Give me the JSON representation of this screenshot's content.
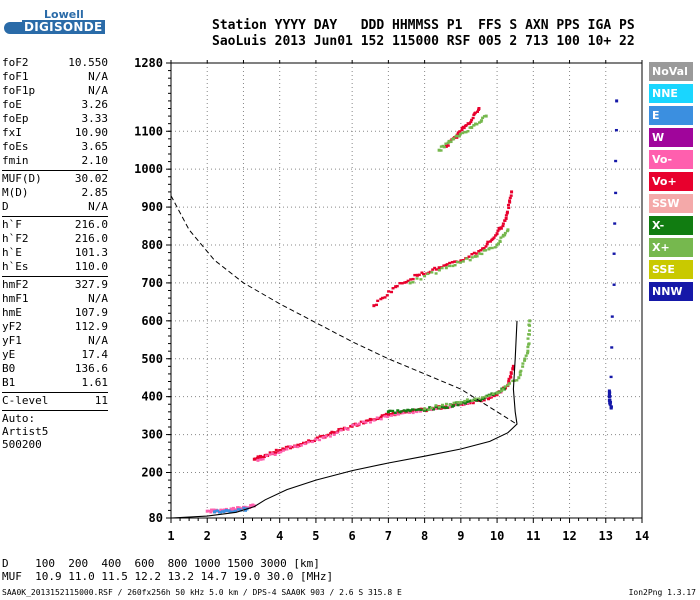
{
  "logo": {
    "line1": "Lowell",
    "line2": "DIGISONDE"
  },
  "header": {
    "line1": "Station YYYY DAY   DDD HHMMSS P1  FFS S AXN PPS IGA PS",
    "line2": "SaoLuis 2013 Jun01 152 115000 RSF 005 2 713 100 10+ 22"
  },
  "params": {
    "group1": [
      {
        "k": "foF2",
        "v": "10.550"
      },
      {
        "k": "foF1",
        "v": "N/A"
      },
      {
        "k": "foF1p",
        "v": "N/A"
      },
      {
        "k": "foE",
        "v": "3.26"
      },
      {
        "k": "foEp",
        "v": "3.33"
      },
      {
        "k": "fxI",
        "v": "10.90"
      },
      {
        "k": "foEs",
        "v": "3.65"
      },
      {
        "k": "fmin",
        "v": "2.10"
      }
    ],
    "group2": [
      {
        "k": "MUF(D)",
        "v": "30.02"
      },
      {
        "k": "M(D)",
        "v": "2.85"
      },
      {
        "k": "D",
        "v": "N/A"
      }
    ],
    "group3": [
      {
        "k": "h`F",
        "v": "216.0"
      },
      {
        "k": "h`F2",
        "v": "216.0"
      },
      {
        "k": "h`E",
        "v": "101.3"
      },
      {
        "k": "h`Es",
        "v": "110.0"
      }
    ],
    "group4": [
      {
        "k": "hmF2",
        "v": "327.9"
      },
      {
        "k": "hmF1",
        "v": "N/A"
      },
      {
        "k": "hmE",
        "v": "107.9"
      },
      {
        "k": "yF2",
        "v": "112.9"
      },
      {
        "k": "yF1",
        "v": "N/A"
      },
      {
        "k": "yE",
        "v": "17.4"
      },
      {
        "k": "B0",
        "v": "136.6"
      },
      {
        "k": "B1",
        "v": "1.61"
      }
    ],
    "group5": [
      {
        "k": "C-level",
        "v": "11"
      }
    ],
    "auto": [
      "Auto:",
      "Artist5",
      "500200"
    ]
  },
  "legend": [
    {
      "label": "NoVal",
      "color": "#9a9a9a"
    },
    {
      "label": "NNE",
      "color": "#19d6ff"
    },
    {
      "label": "E",
      "color": "#3b8fe0"
    },
    {
      "label": "W",
      "color": "#a0059b"
    },
    {
      "label": "Vo-",
      "color": "#ff5fae"
    },
    {
      "label": "Vo+",
      "color": "#e8002d"
    },
    {
      "label": "SSW",
      "color": "#f4a9a9"
    },
    {
      "label": "X-",
      "color": "#117c11"
    },
    {
      "label": "X+",
      "color": "#76b84e"
    },
    {
      "label": "SSE",
      "color": "#c9c900"
    },
    {
      "label": "NNW",
      "color": "#1518a8"
    }
  ],
  "chart_data": {
    "type": "scatter",
    "title": "",
    "xlabel": "",
    "ylabel": "",
    "xlim": [
      1,
      14
    ],
    "ylim": [
      80,
      1280
    ],
    "x_ticks": [
      "1",
      "2",
      "3",
      "4",
      "5",
      "6",
      "7",
      "8",
      "9",
      "10",
      "11",
      "12",
      "13",
      "14"
    ],
    "y_ticks": [
      "80",
      "200",
      "300",
      "400",
      "500",
      "600",
      "700",
      "800",
      "900",
      "1000",
      "1100",
      "1280"
    ],
    "series": [
      {
        "name": "Vo+",
        "color": "#e8002d",
        "points": [
          [
            3.3,
            235
          ],
          [
            3.6,
            245
          ],
          [
            4.0,
            258
          ],
          [
            4.5,
            272
          ],
          [
            5.0,
            288
          ],
          [
            5.5,
            305
          ],
          [
            6.0,
            322
          ],
          [
            6.5,
            340
          ],
          [
            7.0,
            352
          ],
          [
            7.5,
            360
          ],
          [
            8.0,
            365
          ],
          [
            8.5,
            372
          ],
          [
            9.0,
            380
          ],
          [
            9.5,
            390
          ],
          [
            10.0,
            405
          ],
          [
            10.3,
            430
          ],
          [
            10.45,
            480
          ]
        ]
      },
      {
        "name": "Vo-",
        "color": "#ff5fae",
        "points": [
          [
            3.4,
            232
          ],
          [
            4.2,
            262
          ],
          [
            5.2,
            292
          ],
          [
            6.2,
            328
          ],
          [
            7.2,
            354
          ],
          [
            8.2,
            366
          ],
          [
            9.2,
            383
          ],
          [
            10.1,
            412
          ]
        ]
      },
      {
        "name": "X-",
        "color": "#117c11",
        "points": [
          [
            7.0,
            360
          ],
          [
            7.6,
            363
          ],
          [
            8.4,
            370
          ],
          [
            9.0,
            383
          ],
          [
            9.6,
            395
          ],
          [
            10.2,
            420
          ]
        ]
      },
      {
        "name": "X+",
        "color": "#76b84e",
        "points": [
          [
            8.0,
            368
          ],
          [
            9.0,
            385
          ],
          [
            10.0,
            410
          ],
          [
            10.6,
            450
          ],
          [
            10.85,
            520
          ],
          [
            10.9,
            600
          ]
        ]
      },
      {
        "name": "Vo+",
        "color": "#e8002d",
        "points": [
          [
            6.6,
            640
          ],
          [
            7.2,
            690
          ],
          [
            7.8,
            720
          ],
          [
            8.4,
            740
          ],
          [
            9.0,
            758
          ],
          [
            9.6,
            790
          ],
          [
            10.0,
            830
          ],
          [
            10.25,
            870
          ],
          [
            10.4,
            940
          ]
        ]
      },
      {
        "name": "X+",
        "color": "#76b84e",
        "points": [
          [
            7.6,
            700
          ],
          [
            8.6,
            740
          ],
          [
            9.4,
            770
          ],
          [
            10.0,
            800
          ],
          [
            10.3,
            840
          ]
        ]
      },
      {
        "name": "Vo+",
        "color": "#e8002d",
        "points": [
          [
            8.6,
            1060
          ],
          [
            8.9,
            1090
          ],
          [
            9.2,
            1120
          ],
          [
            9.5,
            1160
          ]
        ]
      },
      {
        "name": "X+",
        "color": "#76b84e",
        "points": [
          [
            8.4,
            1050
          ],
          [
            8.8,
            1080
          ],
          [
            9.3,
            1110
          ],
          [
            9.7,
            1140
          ]
        ]
      },
      {
        "name": "Vo-",
        "color": "#ff5fae",
        "points": [
          [
            2.0,
            98
          ],
          [
            2.4,
            100
          ],
          [
            2.7,
            103
          ],
          [
            3.0,
            108
          ],
          [
            3.3,
            112
          ]
        ]
      },
      {
        "name": "E",
        "color": "#3b8fe0",
        "points": [
          [
            2.2,
            96
          ],
          [
            2.6,
            99
          ],
          [
            3.1,
            104
          ]
        ]
      },
      {
        "name": "NNW",
        "color": "#1518a8",
        "points": [
          [
            13.1,
            415
          ],
          [
            13.1,
            390
          ],
          [
            13.15,
            370
          ],
          [
            13.3,
            1180
          ]
        ]
      }
    ],
    "profile": [
      [
        1.0,
        80
      ],
      [
        2.0,
        85
      ],
      [
        2.8,
        95
      ],
      [
        3.3,
        110
      ],
      [
        3.6,
        128
      ],
      [
        4.2,
        155
      ],
      [
        5.0,
        180
      ],
      [
        6.0,
        205
      ],
      [
        7.0,
        225
      ],
      [
        8.0,
        243
      ],
      [
        9.0,
        262
      ],
      [
        9.8,
        282
      ],
      [
        10.3,
        305
      ],
      [
        10.55,
        328
      ],
      [
        10.5,
        360
      ],
      [
        10.45,
        420
      ],
      [
        10.5,
        500
      ],
      [
        10.55,
        600
      ]
    ],
    "dashed": [
      [
        1.0,
        930
      ],
      [
        1.5,
        840
      ],
      [
        2.2,
        760
      ],
      [
        3.0,
        700
      ],
      [
        4.0,
        645
      ],
      [
        5.0,
        595
      ],
      [
        6.0,
        545
      ],
      [
        7.0,
        500
      ],
      [
        8.0,
        460
      ],
      [
        9.0,
        420
      ],
      [
        10.0,
        360
      ],
      [
        10.5,
        330
      ]
    ]
  },
  "bottom": {
    "line1": "D    100  200  400  600  800 1000 1500 3000 [km]",
    "line2": "MUF  10.9 11.0 11.5 12.2 13.2 14.7 19.0 30.0 [MHz]"
  },
  "footer": "SAA0K_2013152115000.RSF / 260fx256h 50 kHz 5.0 km / DPS-4 SAA0K 903 / 2.6 S 315.8 E",
  "version": "Ion2Png 1.3.17"
}
